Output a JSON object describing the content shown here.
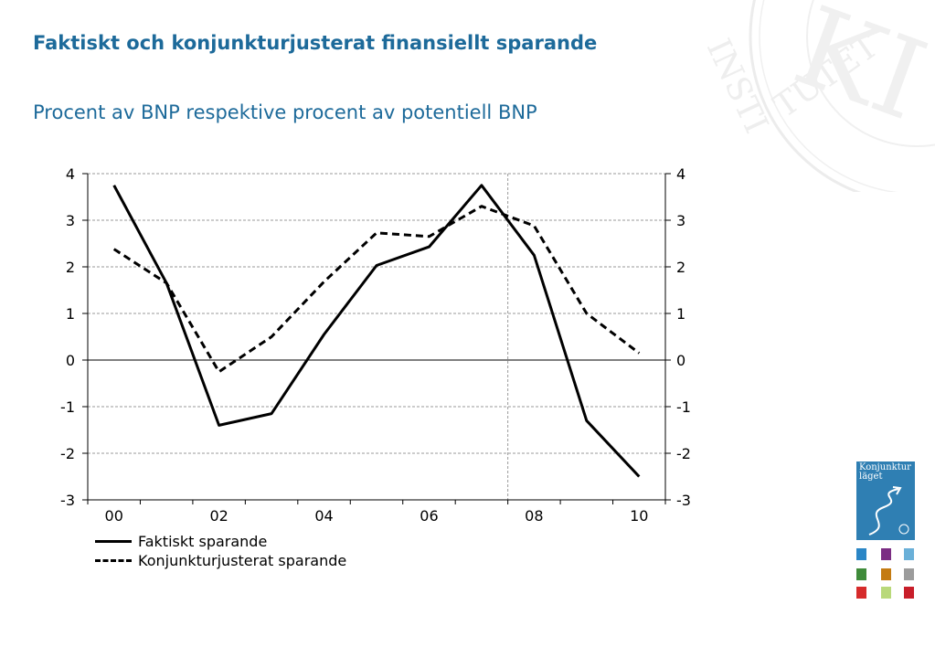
{
  "header": {
    "title": "Faktiskt och konjunkturjusterat finansiellt sparande",
    "subtitle": "Procent av BNP respektive procent av potentiell BNP"
  },
  "chart_data": {
    "type": "line",
    "x": [
      2000,
      2001,
      2002,
      2003,
      2004,
      2005,
      2006,
      2007,
      2008,
      2009,
      2010
    ],
    "xtick_labels": [
      "00",
      "02",
      "04",
      "06",
      "08",
      "10"
    ],
    "xtick_values": [
      2000,
      2002,
      2004,
      2006,
      2008,
      2010
    ],
    "series": [
      {
        "name": "Faktiskt sparande",
        "style": "solid",
        "values": [
          3.75,
          1.65,
          -1.4,
          -1.15,
          0.55,
          2.03,
          2.43,
          3.75,
          2.25,
          -1.3,
          -2.5
        ]
      },
      {
        "name": "Konjunkturjusterat sparande",
        "style": "dashed",
        "values": [
          2.38,
          1.65,
          -0.25,
          0.5,
          1.68,
          2.73,
          2.65,
          3.3,
          2.88,
          1.0,
          0.15
        ]
      }
    ],
    "ylim": [
      -3,
      4
    ],
    "yticks": [
      -3,
      -2,
      -1,
      0,
      1,
      2,
      3,
      4
    ],
    "xlim": [
      1999.5,
      2010.5
    ],
    "forecast_divider_x": 2007.5,
    "grid": true,
    "dual_y_axis": true,
    "legend_position": "bottom-left",
    "colors": {
      "line": "#000000",
      "grid": "#9a9a9a",
      "title": "#1d6a9a"
    }
  },
  "branding": {
    "watermark_text": "KONJUNKTUR INSTITUTET",
    "cover_title": "Konjunktur läget",
    "thumb_colors": [
      "#2a86c6",
      "#7b2d83",
      "#6ab0d8",
      "#3f8b3a",
      "#c47b12",
      "#9c9c9c",
      "#d62b2b",
      "#b9d97a",
      "#c81e2a"
    ]
  }
}
